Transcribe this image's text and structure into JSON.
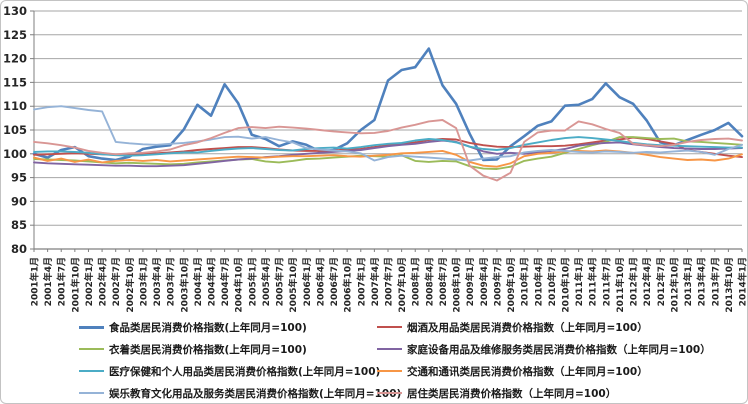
{
  "chart_data": {
    "type": "line",
    "title": "",
    "xlabel": "",
    "ylabel": "",
    "ylim": [
      80,
      130
    ],
    "ytick_step": 5,
    "grid": true,
    "legend_position": "bottom-two-columns",
    "gridline_color": "#a6a6a6",
    "axis_color": "#7f7f7f",
    "x_tick_labels": [
      "2001年1月",
      "2001年4月",
      "2001年7月",
      "2001年10月",
      "2002年1月",
      "2002年4月",
      "2002年7月",
      "2002年10月",
      "2003年1月",
      "2003年4月",
      "2003年7月",
      "2003年10月",
      "2004年1月",
      "2004年4月",
      "2004年7月",
      "2004年10月",
      "2005年1月",
      "2005年4月",
      "2005年7月",
      "2005年10月",
      "2006年1月",
      "2006年4月",
      "2006年7月",
      "2006年10月",
      "2007年1月",
      "2007年4月",
      "2007年7月",
      "2007年10月",
      "2008年1月",
      "2008年4月",
      "2008年7月",
      "2008年10月",
      "2009年1月",
      "2009年4月",
      "2009年7月",
      "2009年10月",
      "2010年1月",
      "2010年4月",
      "2010年7月",
      "2010年10月",
      "2011年1月",
      "2011年4月",
      "2011年7月",
      "2011年10月",
      "2012年1月",
      "2012年4月",
      "2012年7月",
      "2012年10月",
      "2013年1月",
      "2013年4月",
      "2013年7月",
      "2013年10月",
      "2014年1月"
    ],
    "series": [
      {
        "name": "食品类居民消费价格指数(上年同月=100)",
        "color": "#4F81BD",
        "width": 2.6,
        "values": [
          100.0,
          99.2,
          100.8,
          101.4,
          99.5,
          99.0,
          98.7,
          99.4,
          101.0,
          101.5,
          101.8,
          105.1,
          110.3,
          108.0,
          114.6,
          110.6,
          104.0,
          103.1,
          101.6,
          102.6,
          101.9,
          100.5,
          100.8,
          102.2,
          105.0,
          107.1,
          115.4,
          117.6,
          118.2,
          122.1,
          114.4,
          110.5,
          104.2,
          98.7,
          98.8,
          101.6,
          103.7,
          105.9,
          106.8,
          110.1,
          110.3,
          111.5,
          114.8,
          111.9,
          110.5,
          107.0,
          102.4,
          101.8,
          102.9,
          104.0,
          105.0,
          106.5,
          103.7
        ]
      },
      {
        "name": "烟酒及用品类居民消费价格指数（上年同月=100）",
        "color": "#C0504D",
        "width": 1.9,
        "values": [
          99.8,
          99.9,
          100.0,
          100.1,
          100.0,
          99.9,
          99.8,
          99.9,
          100.0,
          100.1,
          100.3,
          100.5,
          100.8,
          101.0,
          101.2,
          101.4,
          101.4,
          101.2,
          100.9,
          100.7,
          100.6,
          100.6,
          100.7,
          100.9,
          101.0,
          101.4,
          101.8,
          102.1,
          102.4,
          102.9,
          103.1,
          103.0,
          102.3,
          101.8,
          101.5,
          101.4,
          101.5,
          101.6,
          101.6,
          101.7,
          102.0,
          102.4,
          102.8,
          103.0,
          103.4,
          103.1,
          102.6,
          102.1,
          100.8,
          100.4,
          100.0,
          99.6,
          99.3
        ]
      },
      {
        "name": "衣着类居民消费价格指数(上年同月=100)",
        "color": "#9BBB59",
        "width": 1.9,
        "values": [
          98.9,
          98.8,
          98.7,
          98.6,
          98.4,
          98.2,
          98.0,
          98.1,
          98.0,
          97.9,
          97.8,
          97.9,
          98.2,
          98.4,
          98.6,
          98.8,
          98.9,
          98.4,
          98.2,
          98.5,
          98.9,
          99.0,
          99.2,
          99.4,
          99.6,
          99.5,
          99.4,
          99.7,
          98.5,
          98.3,
          98.5,
          98.4,
          97.4,
          96.9,
          96.8,
          97.3,
          98.5,
          99.0,
          99.4,
          100.2,
          101.0,
          101.8,
          102.5,
          103.5,
          103.5,
          103.3,
          103.1,
          103.2,
          102.6,
          102.5,
          102.3,
          102.1,
          101.9
        ]
      },
      {
        "name": "家庭设备用品及维修服务类居民消费价格指数（上年同月=100）",
        "color": "#8064A2",
        "width": 1.9,
        "values": [
          98.2,
          98.0,
          97.9,
          97.8,
          97.7,
          97.6,
          97.5,
          97.5,
          97.4,
          97.4,
          97.5,
          97.6,
          97.9,
          98.2,
          98.5,
          98.8,
          99.0,
          99.3,
          99.5,
          99.8,
          100.0,
          100.2,
          100.4,
          100.6,
          100.8,
          101.2,
          101.6,
          101.9,
          102.1,
          102.5,
          102.8,
          102.5,
          101.5,
          100.5,
          100.0,
          100.2,
          100.0,
          100.3,
          100.6,
          101.0,
          101.7,
          102.1,
          102.3,
          102.4,
          102.0,
          101.7,
          101.4,
          101.2,
          101.1,
          101.0,
          101.0,
          101.1,
          101.2
        ]
      },
      {
        "name": "医疗保健和个人用品类居民消费价格指数(上年同月=100)",
        "color": "#4BACC6",
        "width": 1.9,
        "values": [
          100.4,
          100.5,
          100.5,
          100.4,
          100.2,
          99.9,
          99.7,
          99.6,
          99.7,
          99.9,
          100.1,
          100.3,
          100.3,
          100.6,
          100.9,
          101.1,
          101.2,
          101.0,
          100.8,
          100.7,
          101.0,
          101.2,
          101.3,
          101.1,
          101.4,
          101.8,
          102.1,
          102.3,
          102.8,
          103.1,
          102.9,
          102.4,
          101.5,
          101.0,
          100.8,
          101.2,
          101.9,
          102.4,
          102.9,
          103.3,
          103.5,
          103.3,
          103.0,
          102.7,
          102.3,
          102.0,
          101.8,
          101.7,
          101.6,
          101.5,
          101.4,
          101.3,
          101.3
        ]
      },
      {
        "name": "交通和通讯类居民消费价格指数（上年同月=100）",
        "color": "#F79646",
        "width": 1.9,
        "values": [
          99.2,
          98.5,
          99.0,
          98.3,
          98.8,
          98.2,
          98.5,
          98.7,
          98.5,
          98.7,
          98.4,
          98.6,
          98.8,
          99.0,
          99.2,
          99.4,
          99.3,
          99.2,
          99.4,
          99.5,
          99.5,
          99.6,
          99.7,
          99.5,
          99.4,
          99.6,
          99.8,
          100.1,
          100.2,
          100.4,
          100.6,
          99.8,
          98.3,
          97.5,
          97.3,
          98.0,
          99.5,
          100.0,
          100.2,
          100.5,
          100.6,
          100.5,
          100.7,
          100.5,
          100.2,
          99.8,
          99.3,
          99.0,
          98.7,
          98.8,
          98.6,
          99.0,
          99.9
        ]
      },
      {
        "name": "娱乐教育文化用品及服务类居民消费价格指数(上年同月=100)",
        "color": "#95B3D7",
        "width": 1.9,
        "values": [
          109.3,
          109.8,
          110.0,
          109.6,
          109.2,
          108.9,
          102.5,
          102.2,
          102.0,
          101.9,
          102.1,
          102.3,
          102.6,
          103.0,
          103.5,
          103.6,
          103.2,
          103.5,
          102.9,
          102.4,
          101.2,
          100.9,
          100.7,
          100.5,
          100.1,
          98.6,
          99.3,
          99.6,
          99.4,
          99.2,
          99.0,
          98.8,
          98.6,
          99.0,
          99.3,
          99.5,
          100.3,
          100.6,
          100.8,
          100.6,
          100.4,
          100.3,
          100.5,
          100.4,
          100.2,
          100.4,
          100.3,
          100.5,
          100.7,
          100.4,
          99.8,
          101.0,
          101.9
        ]
      },
      {
        "name": "居住类居民消费价格指数（上年同月=100）",
        "color": "#D99694",
        "width": 1.9,
        "values": [
          102.5,
          102.2,
          101.8,
          101.3,
          100.6,
          100.2,
          99.9,
          100.1,
          100.2,
          100.5,
          100.9,
          101.8,
          102.4,
          103.3,
          104.4,
          105.4,
          105.6,
          105.4,
          105.7,
          105.5,
          105.3,
          105.0,
          104.7,
          104.5,
          104.3,
          104.4,
          104.8,
          105.5,
          106.1,
          106.8,
          107.1,
          105.4,
          97.5,
          95.4,
          94.4,
          96.0,
          102.5,
          104.5,
          104.9,
          104.9,
          106.8,
          106.2,
          105.2,
          104.4,
          102.1,
          101.8,
          101.6,
          101.9,
          102.5,
          102.9,
          103.1,
          103.2,
          102.8
        ]
      }
    ]
  }
}
